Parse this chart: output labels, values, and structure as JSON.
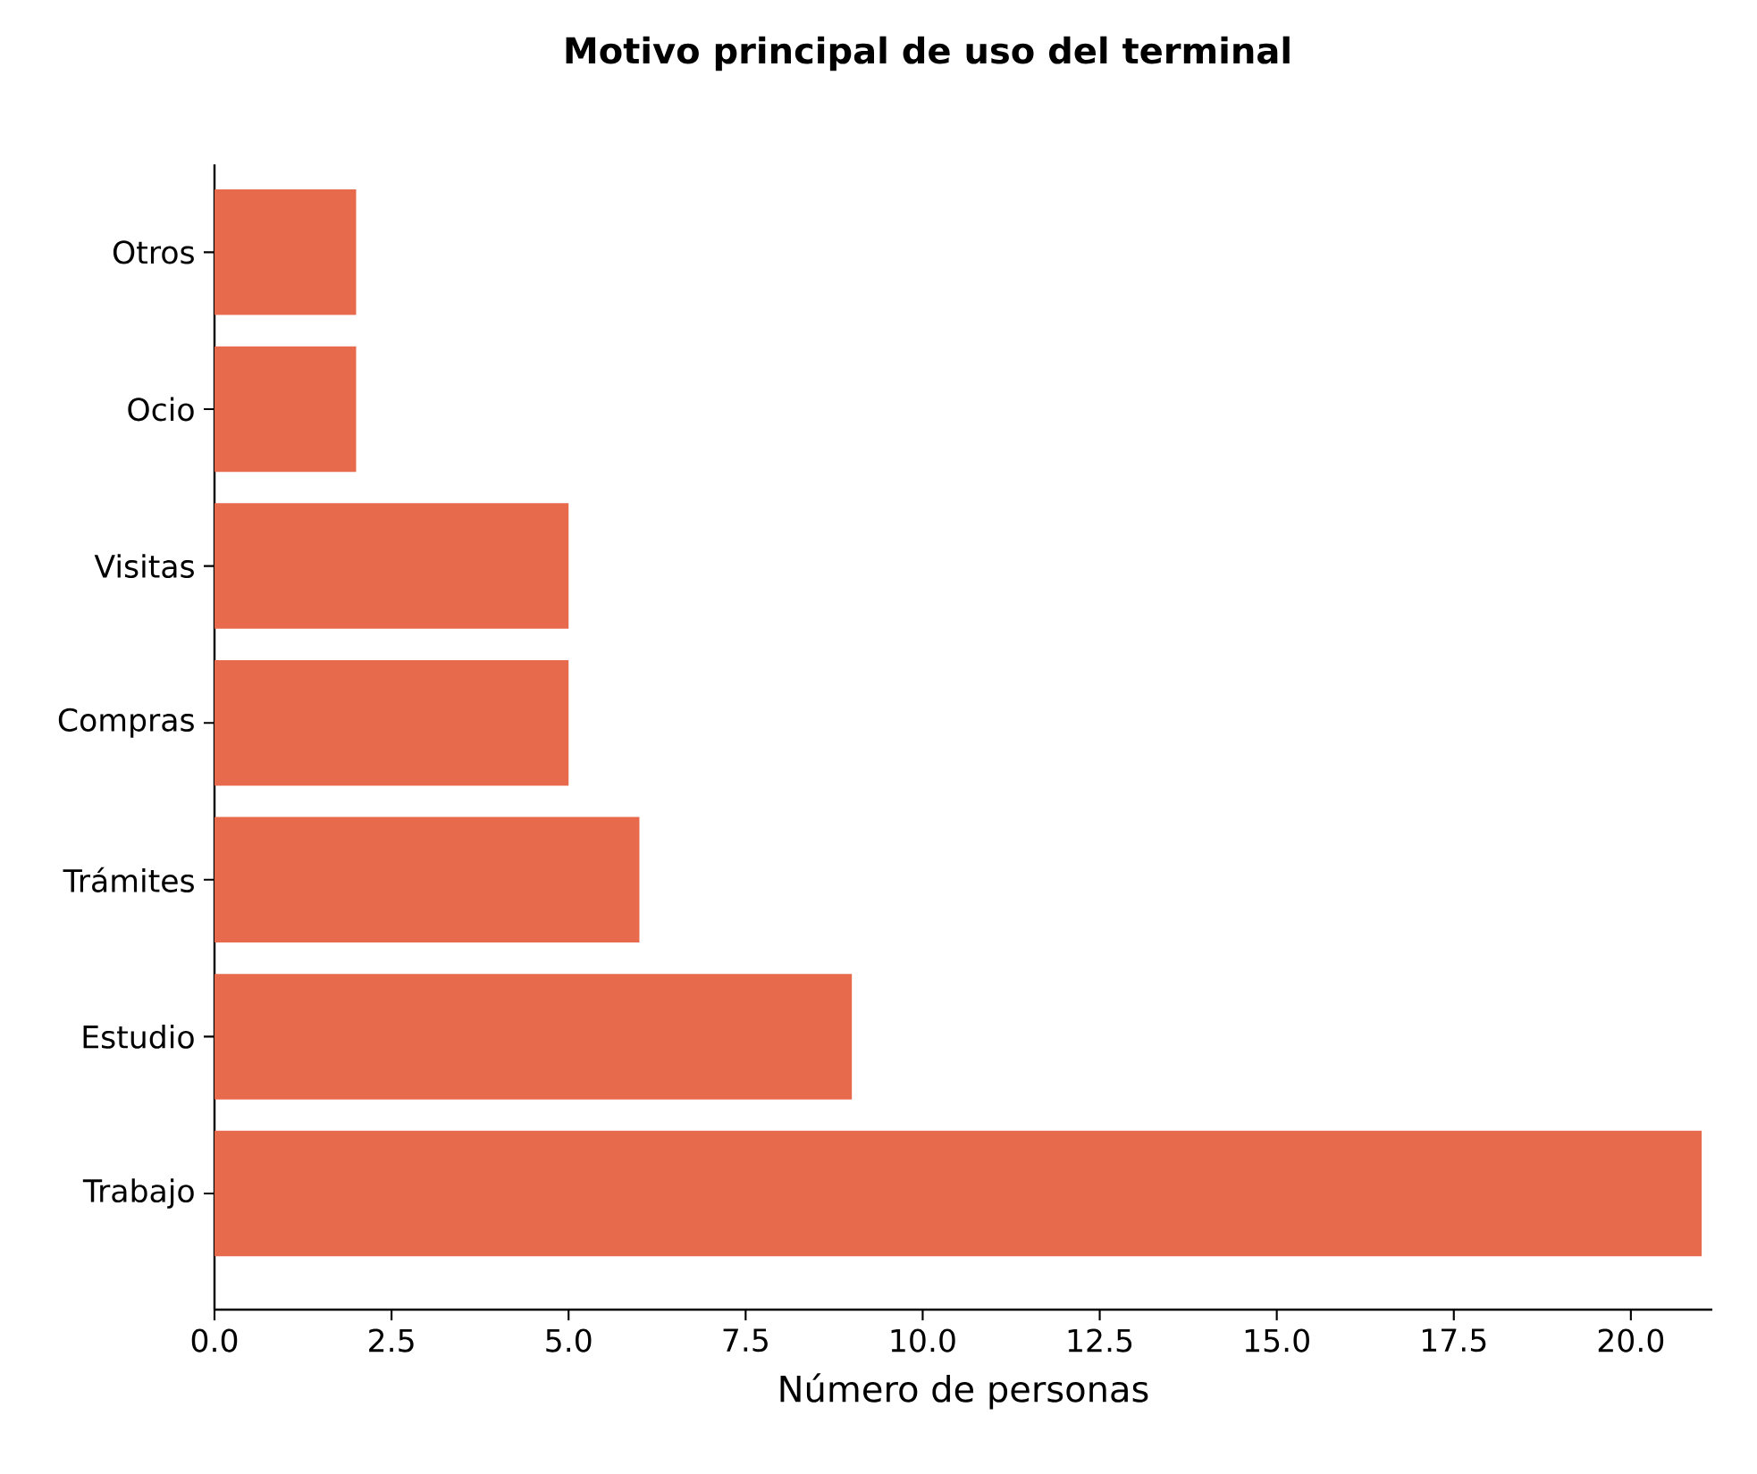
{
  "chart_data": {
    "type": "bar",
    "orientation": "horizontal",
    "title": "Motivo principal de uso del terminal",
    "xlabel": "Número de personas",
    "categories": [
      "Otros",
      "Ocio",
      "Visitas",
      "Compras",
      "Trámites",
      "Estudio",
      "Trabajo"
    ],
    "values": [
      2,
      2,
      5,
      5,
      6,
      9,
      21
    ],
    "color": "#e76a4c",
    "xlim": [
      0,
      21.15
    ],
    "xticks": [
      {
        "value": 0,
        "label": "0.0"
      },
      {
        "value": 2.5,
        "label": "2.5"
      },
      {
        "value": 5,
        "label": "5.0"
      },
      {
        "value": 7.5,
        "label": "7.5"
      },
      {
        "value": 10,
        "label": "10.0"
      },
      {
        "value": 12.5,
        "label": "12.5"
      },
      {
        "value": 15,
        "label": "15.0"
      },
      {
        "value": 17.5,
        "label": "17.5"
      },
      {
        "value": 20,
        "label": "20.0"
      }
    ]
  }
}
